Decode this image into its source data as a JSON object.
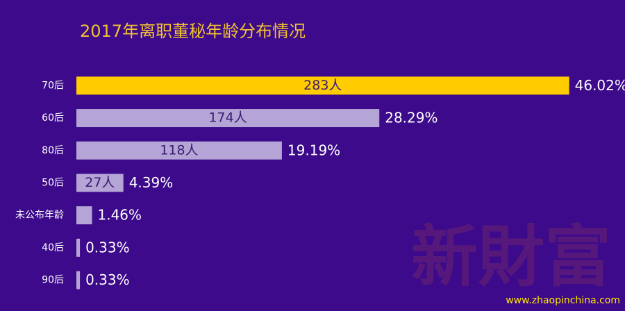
{
  "chart_data": {
    "type": "bar",
    "orientation": "horizontal",
    "title": "2017年离职董秘年龄分布情况",
    "categories": [
      "70后",
      "60后",
      "80后",
      "50后",
      "未公布年龄",
      "40后",
      "90后"
    ],
    "values": [
      46.02,
      28.29,
      19.19,
      4.39,
      1.46,
      0.33,
      0.33
    ],
    "value_labels": [
      "46.02%",
      "28.29%",
      "19.19%",
      "4.39%",
      "1.46%",
      "0.33%",
      "0.33%"
    ],
    "count_labels": [
      "283人",
      "174人",
      "118人",
      "27人",
      null,
      null,
      null
    ],
    "colors": [
      "#ffcc00",
      "#b4a5d6",
      "#b4a5d6",
      "#b4a5d6",
      "#b4a5d6",
      "#b4a5d6",
      "#b4a5d6"
    ],
    "xlim": [
      0,
      50
    ],
    "watermark": "新財富",
    "source_url": "www.zhaopinchina.com"
  }
}
